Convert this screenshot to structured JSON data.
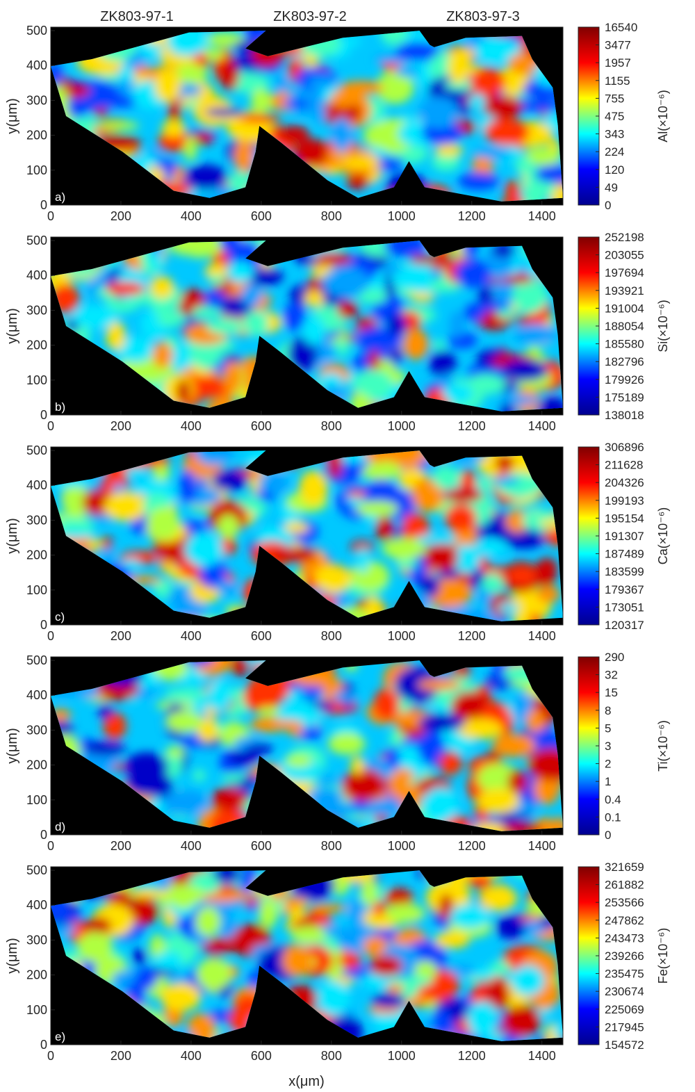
{
  "figure": {
    "sample_titles": [
      "ZK803-97-1",
      "ZK803-97-2",
      "ZK803-97-3"
    ],
    "xlabel": "x(μm)",
    "ylabel": "y(μm)",
    "x_ticks": [
      "0",
      "200",
      "400",
      "600",
      "800",
      "1000",
      "1200",
      "1400"
    ],
    "y_ticks": [
      "0",
      "100",
      "200",
      "300",
      "400",
      "500"
    ],
    "background_color": "#000000",
    "colormap": "jet",
    "colormap_stops": [
      "#00008f",
      "#0000ff",
      "#00ffff",
      "#ffff00",
      "#ff0000",
      "#800000"
    ]
  },
  "chart_data": [
    {
      "type": "heatmap",
      "panel_label": "a)",
      "element": "Al",
      "colorbar_label": "Al(×10⁻⁶)",
      "colorbar_ticks": [
        "16540",
        "3477",
        "1957",
        "1155",
        "755",
        "475",
        "343",
        "224",
        "120",
        "49",
        "0"
      ],
      "xlim": [
        0,
        1460
      ],
      "ylim": [
        0,
        510
      ]
    },
    {
      "type": "heatmap",
      "panel_label": "b)",
      "element": "Si",
      "colorbar_label": "Si(×10⁻⁶)",
      "colorbar_ticks": [
        "252198",
        "203055",
        "197694",
        "193921",
        "191004",
        "188054",
        "185580",
        "182796",
        "179926",
        "175189",
        "138018"
      ],
      "xlim": [
        0,
        1460
      ],
      "ylim": [
        0,
        510
      ]
    },
    {
      "type": "heatmap",
      "panel_label": "c)",
      "element": "Ca",
      "colorbar_label": "Ca(×10⁻⁶)",
      "colorbar_ticks": [
        "306896",
        "211628",
        "204326",
        "199193",
        "195154",
        "191307",
        "187489",
        "183599",
        "179367",
        "173051",
        "120317"
      ],
      "xlim": [
        0,
        1460
      ],
      "ylim": [
        0,
        510
      ]
    },
    {
      "type": "heatmap",
      "panel_label": "d)",
      "element": "Ti",
      "colorbar_label": "Ti(×10⁻⁶)",
      "colorbar_ticks": [
        "290",
        "32",
        "15",
        "8",
        "5",
        "3",
        "2",
        "1",
        "0.4",
        "0.1",
        "0"
      ],
      "xlim": [
        0,
        1460
      ],
      "ylim": [
        0,
        510
      ]
    },
    {
      "type": "heatmap",
      "panel_label": "e)",
      "element": "Fe",
      "colorbar_label": "Fe(×10⁻⁶)",
      "colorbar_ticks": [
        "321659",
        "261882",
        "253566",
        "247862",
        "243473",
        "239266",
        "235475",
        "230674",
        "225069",
        "217945",
        "154572"
      ],
      "xlim": [
        0,
        1460
      ],
      "ylim": [
        0,
        510
      ]
    }
  ]
}
